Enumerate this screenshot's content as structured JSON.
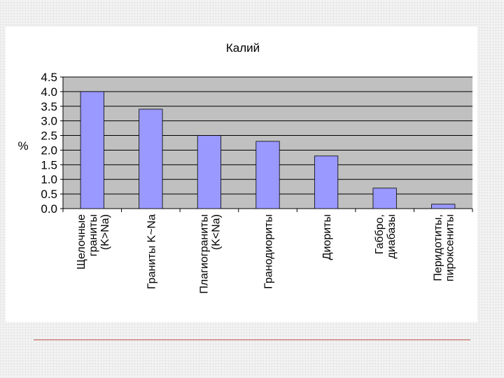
{
  "chart_data": {
    "type": "bar",
    "title": "Калий",
    "ylabel": "%",
    "xlabel": "",
    "ylim": [
      0,
      4.5
    ],
    "yticks": [
      "0.0",
      "0.5",
      "1.0",
      "1.5",
      "2.0",
      "2.5",
      "3.0",
      "3.5",
      "4.0",
      "4.5"
    ],
    "grid": true,
    "legend": "none",
    "categories": [
      [
        "Щелочные",
        "граниты",
        "(K>Na)"
      ],
      [
        "Граниты K~Na"
      ],
      [
        "Плагиограниты",
        "(K<Na)"
      ],
      [
        "Гранодиориты"
      ],
      [
        "Диориты"
      ],
      [
        "Габбро,",
        "диабазы"
      ],
      [
        "Перидотиты,",
        "пироксениты"
      ]
    ],
    "values": [
      4.0,
      3.4,
      2.5,
      2.3,
      1.8,
      0.7,
      0.15
    ]
  },
  "colors": {
    "bar": "#9999ff",
    "plot_background": "#c0c0c0",
    "accent_rule": "#c0504d"
  }
}
